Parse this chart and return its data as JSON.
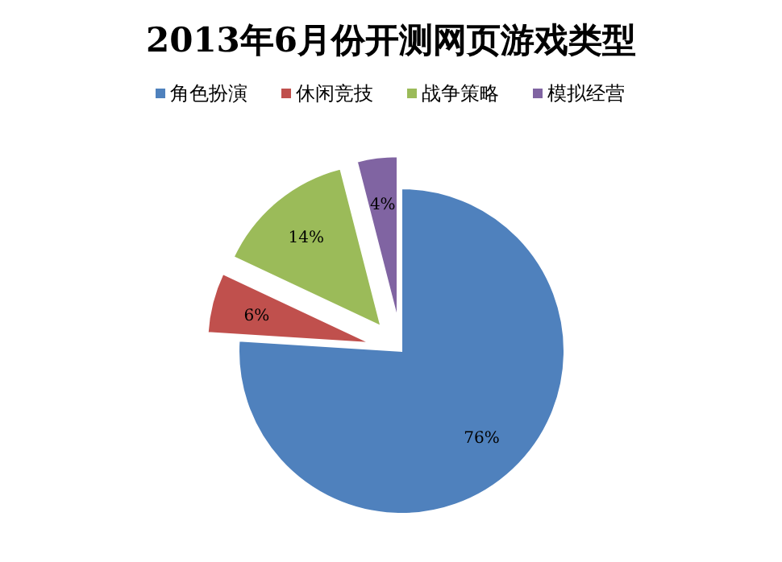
{
  "chart_data": {
    "type": "pie",
    "title": "2013年6月份开测网页游戏类型",
    "categories": [
      "角色扮演",
      "休闲竞技",
      "战争策略",
      "模拟经营"
    ],
    "values": [
      76,
      6,
      14,
      4
    ],
    "colors": [
      "#4f81bd",
      "#c0504d",
      "#9bbb59",
      "#8064a2"
    ],
    "value_labels": [
      "76%",
      "6%",
      "14%",
      "4%"
    ],
    "legend": "top"
  }
}
